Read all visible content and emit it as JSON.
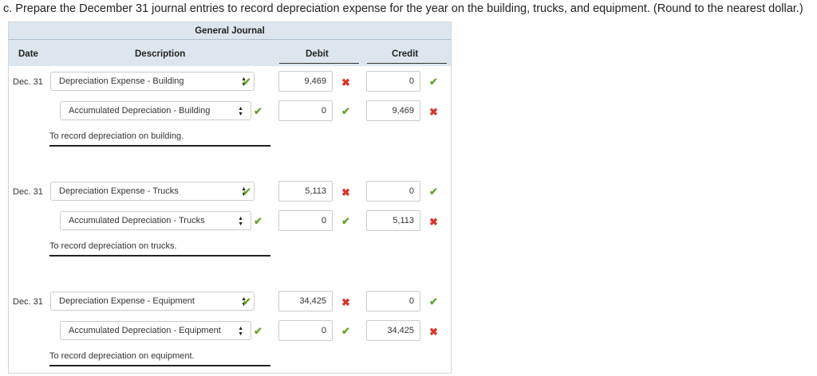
{
  "question": "c. Prepare the December 31 journal entries to record depreciation expense for the year on the building, trucks, and equipment. (Round to the nearest dollar.)",
  "journal": {
    "title": "General Journal",
    "columns": {
      "date": "Date",
      "description": "Description",
      "debit": "Debit",
      "credit": "Credit"
    },
    "entries": [
      {
        "date": "Dec. 31",
        "debit_account": "Depreciation Expense - Building",
        "credit_account": "Accumulated Depreciation - Building",
        "debit_row": {
          "debit": "9,469",
          "credit": "0"
        },
        "credit_row": {
          "debit": "0",
          "credit": "9,469"
        },
        "note": "To record depreciation on building."
      },
      {
        "date": "Dec. 31",
        "debit_account": "Depreciation Expense - Trucks",
        "credit_account": "Accumulated Depreciation - Trucks",
        "debit_row": {
          "debit": "5,113",
          "credit": "0"
        },
        "credit_row": {
          "debit": "0",
          "credit": "5,113"
        },
        "note": "To record depreciation on trucks."
      },
      {
        "date": "Dec. 31",
        "debit_account": "Depreciation Expense - Equipment",
        "credit_account": "Accumulated Depreciation - Equipment",
        "debit_row": {
          "debit": "34,425",
          "credit": "0"
        },
        "credit_row": {
          "debit": "0",
          "credit": "34,425"
        },
        "note": "To record depreciation on equipment."
      }
    ]
  },
  "icons": {
    "correct": "checkmark-icon",
    "incorrect": "x-mark-icon",
    "select_arrow": "up-down-arrow-icon"
  },
  "colors": {
    "correct": "#6aa22c",
    "incorrect": "#d8362c",
    "header_band": "#dde6ee"
  }
}
